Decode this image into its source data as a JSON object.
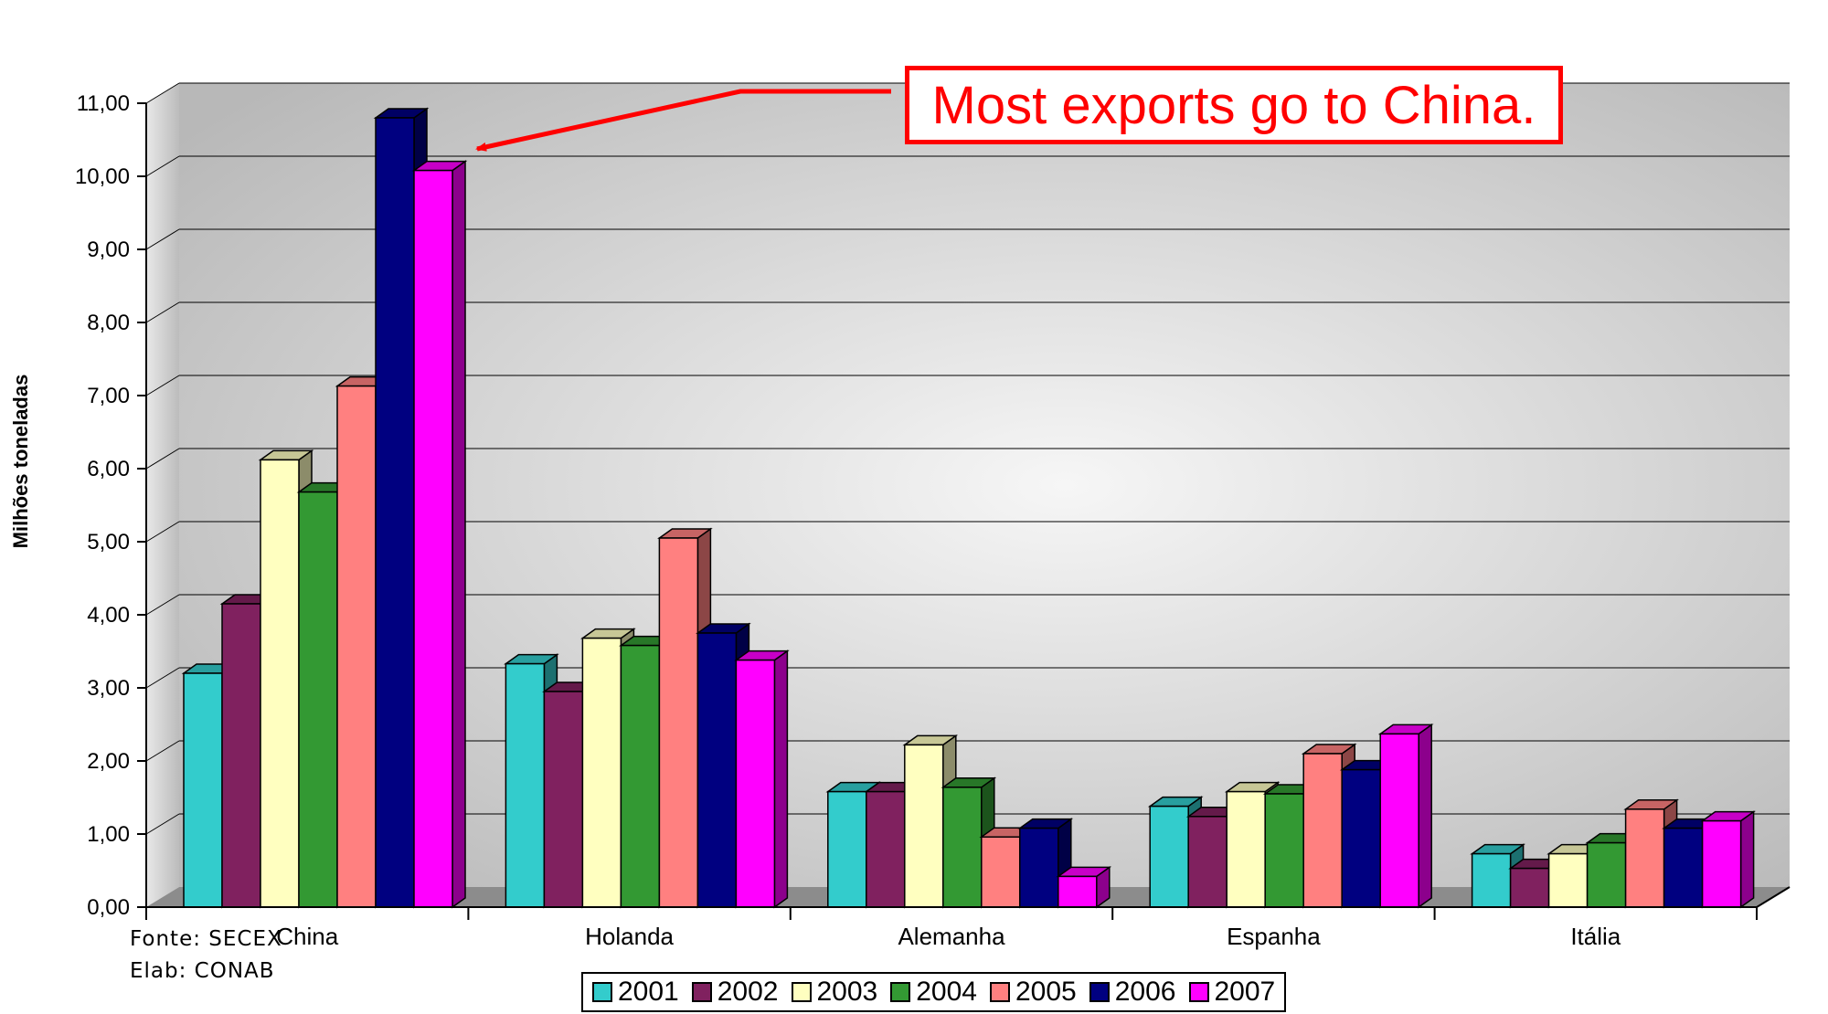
{
  "chart_data": {
    "type": "bar",
    "title": "",
    "xlabel": "",
    "ylabel": "Milhões toneladas",
    "ylim": [
      0,
      11
    ],
    "ytick_labels": [
      "0,00",
      "1,00",
      "2,00",
      "3,00",
      "4,00",
      "5,00",
      "6,00",
      "7,00",
      "8,00",
      "9,00",
      "10,00",
      "11,00"
    ],
    "grid": true,
    "legend_position": "bottom",
    "categories": [
      "China",
      "Holanda",
      "Alemanha",
      "Espanha",
      "Itália"
    ],
    "series": [
      {
        "name": "2001",
        "color": "#33cccc",
        "values": [
          3.2,
          3.33,
          1.58,
          1.38,
          0.73
        ]
      },
      {
        "name": "2002",
        "color": "#80215f",
        "values": [
          4.15,
          2.95,
          1.58,
          1.24,
          0.53
        ]
      },
      {
        "name": "2003",
        "color": "#ffffc0",
        "values": [
          6.12,
          3.68,
          2.22,
          1.58,
          0.73
        ]
      },
      {
        "name": "2004",
        "color": "#339933",
        "values": [
          5.68,
          3.58,
          1.64,
          1.55,
          0.88
        ]
      },
      {
        "name": "2005",
        "color": "#ff8080",
        "values": [
          7.13,
          5.05,
          0.96,
          2.1,
          1.34
        ]
      },
      {
        "name": "2006",
        "color": "#000080",
        "values": [
          10.8,
          3.75,
          1.08,
          1.88,
          1.08
        ]
      },
      {
        "name": "2007",
        "color": "#ff00ff",
        "values": [
          10.08,
          3.38,
          0.42,
          2.37,
          1.18
        ]
      }
    ],
    "annotation": "Most exports go to China."
  },
  "notes": {
    "source": "Fonte: SECEX",
    "elab": "Elab: CONAB"
  }
}
